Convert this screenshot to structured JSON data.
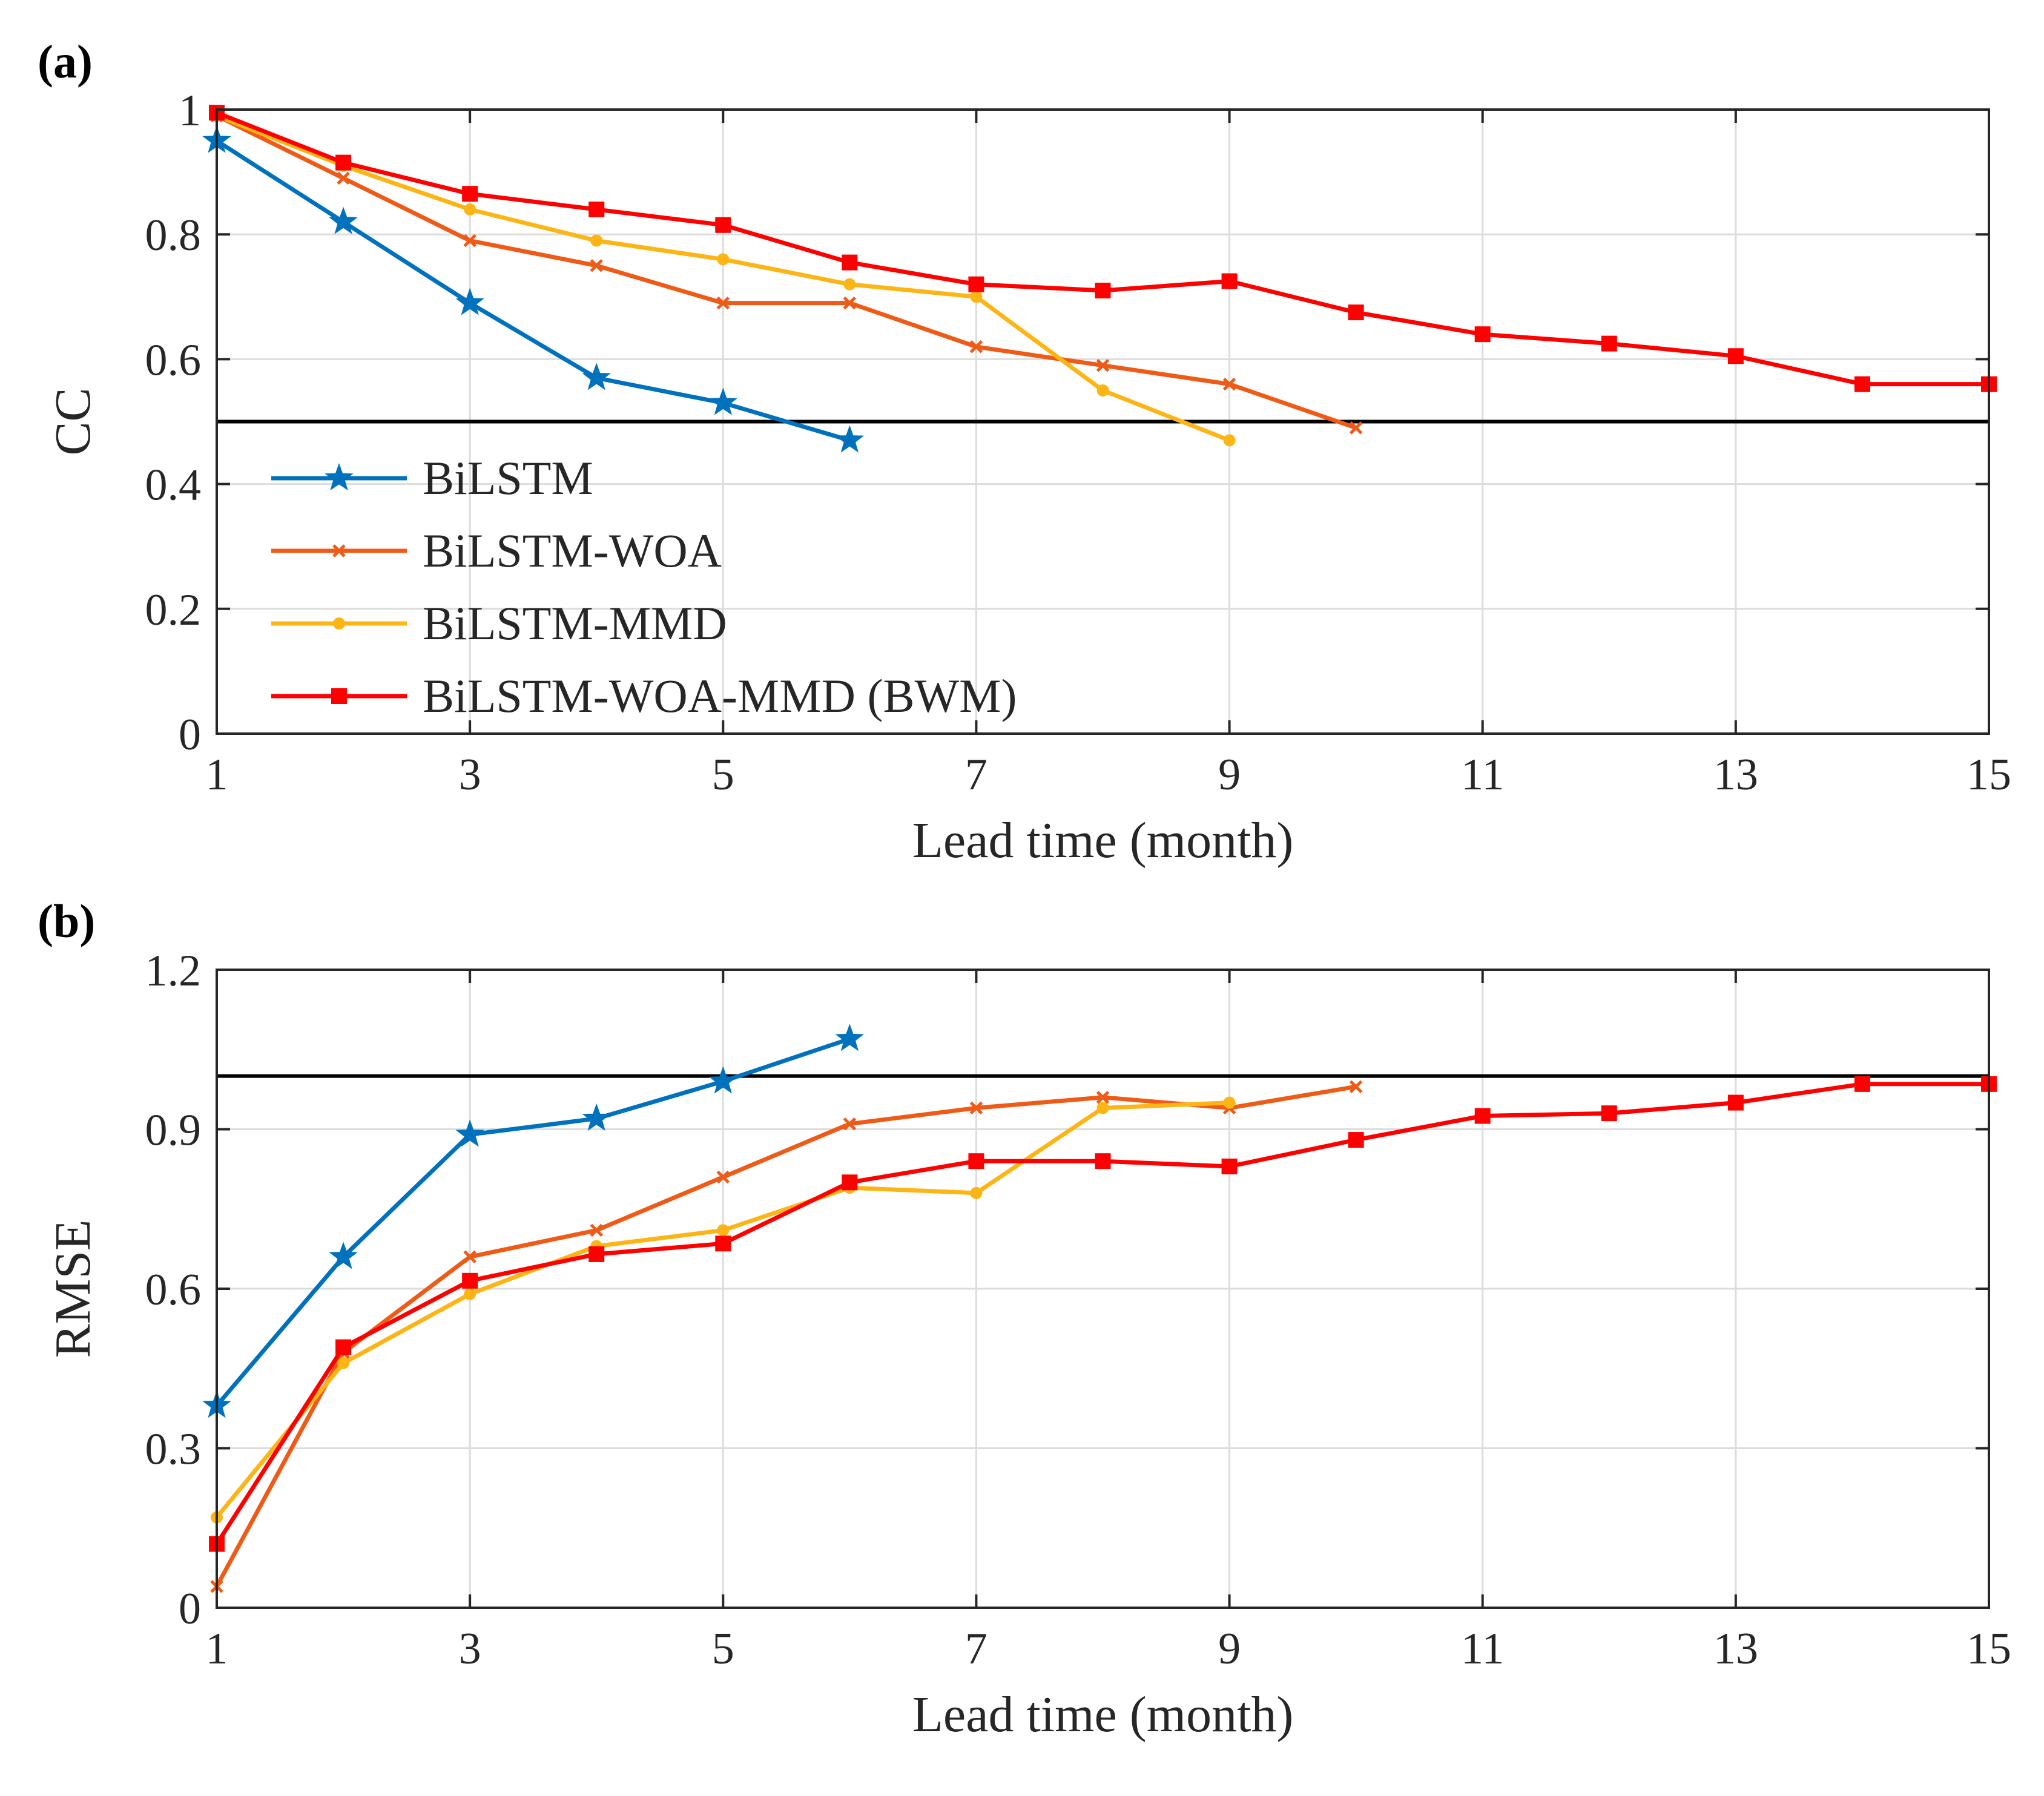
{
  "chart_data": [
    {
      "type": "line",
      "panel_label": "(a)",
      "xlabel": "Lead time (month)",
      "ylabel": "CC",
      "xlim": [
        1,
        15
      ],
      "ylim": [
        0,
        1
      ],
      "xticks": [
        1,
        3,
        5,
        7,
        9,
        11,
        13,
        15
      ],
      "yticks": [
        0,
        0.2,
        0.4,
        0.6,
        0.8,
        1
      ],
      "ytick_labels": [
        "0",
        "0.2",
        "0.4",
        "0.6",
        "0.8",
        "1"
      ],
      "grid": true,
      "legend_position": "lower-left",
      "reference_line": 0.5,
      "series": [
        {
          "name": "BiLSTM",
          "color": "#0072BD",
          "marker": "star",
          "x": [
            1,
            2,
            3,
            4,
            5,
            6
          ],
          "y": [
            0.95,
            0.82,
            0.69,
            0.57,
            0.53,
            0.47
          ]
        },
        {
          "name": "BiLSTM-WOA",
          "color": "#EF5B17",
          "marker": "x",
          "x": [
            1,
            2,
            3,
            4,
            5,
            6,
            7,
            8,
            9,
            10
          ],
          "y": [
            0.99,
            0.89,
            0.79,
            0.75,
            0.69,
            0.69,
            0.62,
            0.59,
            0.56,
            0.49
          ]
        },
        {
          "name": "BiLSTM-MMD",
          "color": "#FDB515",
          "marker": "circle",
          "x": [
            1,
            2,
            3,
            4,
            5,
            6,
            7,
            8,
            9
          ],
          "y": [
            0.99,
            0.91,
            0.84,
            0.79,
            0.76,
            0.72,
            0.7,
            0.55,
            0.47
          ]
        },
        {
          "name": "BiLSTM-WOA-MMD (BWM)",
          "color": "#FF0000",
          "marker": "square",
          "x": [
            1,
            2,
            3,
            4,
            5,
            6,
            7,
            8,
            9,
            10,
            11,
            12,
            13,
            14,
            15
          ],
          "y": [
            0.995,
            0.915,
            0.865,
            0.84,
            0.815,
            0.755,
            0.72,
            0.71,
            0.725,
            0.675,
            0.64,
            0.625,
            0.605,
            0.56,
            0.56
          ]
        }
      ]
    },
    {
      "type": "line",
      "panel_label": "(b)",
      "xlabel": "Lead time (month)",
      "ylabel": "RMSE",
      "xlim": [
        1,
        15
      ],
      "ylim": [
        0,
        1.2
      ],
      "xticks": [
        1,
        3,
        5,
        7,
        9,
        11,
        13,
        15
      ],
      "yticks": [
        0,
        0.3,
        0.6,
        0.9,
        1.2
      ],
      "ytick_labels": [
        "0",
        "0.3",
        "0.6",
        "0.9",
        "1.2"
      ],
      "grid": true,
      "reference_line": 1.0,
      "series": [
        {
          "name": "BiLSTM",
          "color": "#0072BD",
          "marker": "star",
          "x": [
            1,
            2,
            3,
            4,
            5,
            6
          ],
          "y": [
            0.38,
            0.66,
            0.89,
            0.92,
            0.99,
            1.07
          ]
        },
        {
          "name": "BiLSTM-WOA",
          "color": "#EF5B17",
          "marker": "x",
          "x": [
            1,
            2,
            3,
            4,
            5,
            6,
            7,
            8,
            9,
            10
          ],
          "y": [
            0.04,
            0.48,
            0.66,
            0.71,
            0.81,
            0.91,
            0.94,
            0.96,
            0.94,
            0.98
          ]
        },
        {
          "name": "BiLSTM-MMD",
          "color": "#FDB515",
          "marker": "circle",
          "x": [
            1,
            2,
            3,
            4,
            5,
            6,
            7,
            8,
            9
          ],
          "y": [
            0.17,
            0.46,
            0.59,
            0.68,
            0.71,
            0.79,
            0.78,
            0.94,
            0.95
          ]
        },
        {
          "name": "BiLSTM-WOA-MMD (BWM)",
          "color": "#FF0000",
          "marker": "square",
          "x": [
            1,
            2,
            3,
            4,
            5,
            6,
            7,
            8,
            9,
            10,
            11,
            12,
            13,
            14,
            15
          ],
          "y": [
            0.12,
            0.49,
            0.615,
            0.665,
            0.685,
            0.8,
            0.84,
            0.84,
            0.83,
            0.88,
            0.925,
            0.93,
            0.95,
            0.985,
            0.985
          ]
        }
      ]
    }
  ]
}
